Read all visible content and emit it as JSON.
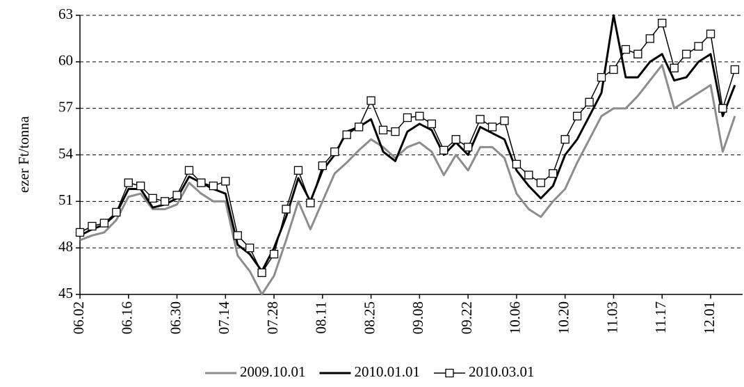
{
  "chart_data": {
    "type": "line",
    "y_label": "ezer Ft/tonna",
    "categories": [
      "06.02",
      null,
      null,
      null,
      "06.16",
      null,
      null,
      null,
      "06.30",
      null,
      null,
      null,
      "07.14",
      null,
      null,
      null,
      "07.28",
      null,
      null,
      null,
      "08.11",
      null,
      null,
      null,
      "08.25",
      null,
      null,
      null,
      "09.08",
      null,
      null,
      null,
      "09.22",
      null,
      null,
      null,
      "10.06",
      null,
      null,
      null,
      "10.20",
      null,
      null,
      null,
      "11.03",
      null,
      null,
      null,
      "11.17",
      null,
      null,
      null,
      "12.01",
      null,
      null
    ],
    "series": [
      {
        "name": "2009.10.01",
        "color": "#8c8c8c",
        "marker": "none",
        "values": [
          48.5,
          48.8,
          49.0,
          49.8,
          51.3,
          51.5,
          50.5,
          50.5,
          50.8,
          52.2,
          51.5,
          51.0,
          51.0,
          47.5,
          46.5,
          45.0,
          46.2,
          48.5,
          51.0,
          49.2,
          51.0,
          52.8,
          53.5,
          54.3,
          55.0,
          54.5,
          53.8,
          54.5,
          54.8,
          54.2,
          52.7,
          54.0,
          53.0,
          54.5,
          54.5,
          53.8,
          51.5,
          50.5,
          50.0,
          51.0,
          51.8,
          53.5,
          55.0,
          56.5,
          57.0,
          57.0,
          57.8,
          58.8,
          59.8,
          57.0,
          57.5,
          58.0,
          58.5,
          54.2,
          56.5
        ]
      },
      {
        "name": "2010.01.01",
        "color": "#000000",
        "marker": "none",
        "values": [
          48.8,
          49.2,
          49.5,
          50.2,
          51.8,
          51.8,
          50.6,
          50.8,
          51.2,
          52.6,
          52.2,
          51.8,
          51.5,
          48.2,
          47.6,
          46.5,
          48.0,
          50.0,
          52.5,
          51.0,
          53.0,
          54.0,
          55.5,
          55.8,
          56.3,
          54.2,
          53.6,
          55.5,
          56.0,
          55.6,
          54.0,
          54.8,
          54.0,
          55.8,
          55.4,
          55.0,
          53.0,
          52.0,
          51.2,
          52.0,
          54.0,
          55.0,
          56.5,
          58.0,
          63.0,
          59.0,
          59.0,
          60.0,
          60.5,
          58.8,
          59.0,
          60.0,
          60.5,
          56.5,
          58.5
        ]
      },
      {
        "name": "2010.03.01",
        "color": "#000000",
        "marker": "square",
        "values": [
          49.0,
          49.4,
          49.6,
          50.3,
          52.2,
          52.0,
          51.2,
          51.0,
          51.4,
          53.0,
          52.2,
          52.0,
          52.3,
          48.8,
          48.0,
          46.4,
          47.6,
          50.5,
          53.0,
          50.9,
          53.3,
          54.2,
          55.3,
          55.8,
          57.5,
          55.6,
          55.5,
          56.4,
          56.5,
          56.0,
          54.3,
          55.0,
          54.5,
          56.3,
          55.8,
          56.2,
          53.4,
          52.7,
          52.2,
          52.8,
          55.0,
          56.5,
          57.4,
          59.0,
          59.5,
          60.8,
          60.5,
          61.5,
          62.5,
          59.6,
          60.5,
          61.0,
          61.8,
          57.0,
          59.5
        ]
      }
    ],
    "ylim": [
      45,
      63
    ],
    "yticks": [
      45,
      48,
      51,
      54,
      57,
      60,
      63
    ],
    "grid": true
  }
}
